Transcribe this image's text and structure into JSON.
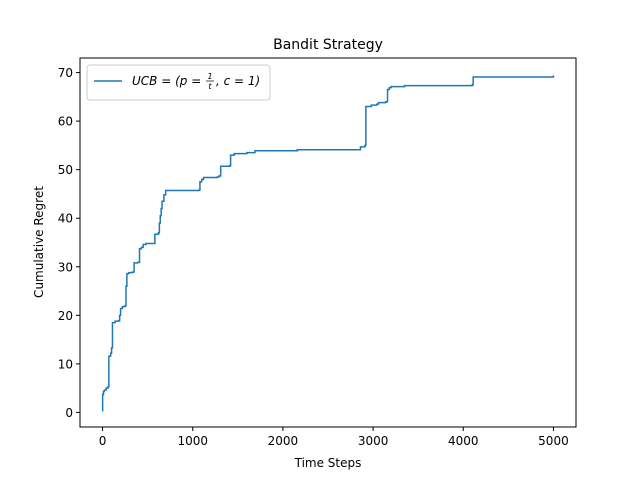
{
  "chart_data": {
    "type": "line",
    "title": "Bandit Strategy",
    "xlabel": "Time Steps",
    "ylabel": "Cumulative Regret",
    "xlim": [
      -250,
      5250
    ],
    "ylim": [
      -3,
      73
    ],
    "xticks": [
      0,
      1000,
      2000,
      3000,
      4000,
      5000
    ],
    "yticks": [
      0,
      10,
      20,
      30,
      40,
      50,
      60,
      70
    ],
    "grid": false,
    "legend_position": "top-left",
    "series": [
      {
        "name": "UCB = (p = 1/t, c = 1)",
        "color": "#1f77b4",
        "step": true,
        "points": [
          [
            0,
            0.3
          ],
          [
            1,
            3.7
          ],
          [
            10,
            4.3
          ],
          [
            20,
            4.6
          ],
          [
            40,
            5.0
          ],
          [
            60,
            5.3
          ],
          [
            70,
            11.6
          ],
          [
            90,
            12.2
          ],
          [
            100,
            13.3
          ],
          [
            110,
            18.5
          ],
          [
            140,
            18.8
          ],
          [
            180,
            18.9
          ],
          [
            190,
            20.0
          ],
          [
            200,
            21.4
          ],
          [
            220,
            21.8
          ],
          [
            250,
            22.0
          ],
          [
            260,
            26.0
          ],
          [
            270,
            28.6
          ],
          [
            290,
            28.8
          ],
          [
            330,
            28.9
          ],
          [
            350,
            30.8
          ],
          [
            390,
            30.9
          ],
          [
            410,
            33.7
          ],
          [
            430,
            34.0
          ],
          [
            450,
            34.6
          ],
          [
            480,
            34.8
          ],
          [
            580,
            36.7
          ],
          [
            620,
            37.0
          ],
          [
            630,
            39.0
          ],
          [
            640,
            40.5
          ],
          [
            650,
            42.0
          ],
          [
            660,
            43.5
          ],
          [
            680,
            44.8
          ],
          [
            700,
            45.7
          ],
          [
            1070,
            45.8
          ],
          [
            1080,
            47.5
          ],
          [
            1100,
            48.0
          ],
          [
            1120,
            48.4
          ],
          [
            1270,
            48.5
          ],
          [
            1290,
            48.7
          ],
          [
            1310,
            50.7
          ],
          [
            1410,
            50.8
          ],
          [
            1420,
            53.0
          ],
          [
            1460,
            53.3
          ],
          [
            1600,
            53.5
          ],
          [
            1690,
            53.9
          ],
          [
            2160,
            54.1
          ],
          [
            2860,
            54.7
          ],
          [
            2910,
            55.0
          ],
          [
            2920,
            63.0
          ],
          [
            2980,
            63.3
          ],
          [
            3040,
            63.5
          ],
          [
            3060,
            63.8
          ],
          [
            3140,
            64.0
          ],
          [
            3160,
            66.5
          ],
          [
            3180,
            66.9
          ],
          [
            3200,
            67.1
          ],
          [
            3350,
            67.3
          ],
          [
            4100,
            67.5
          ],
          [
            4110,
            69.1
          ],
          [
            4990,
            69.1
          ],
          [
            5000,
            69.4
          ]
        ]
      }
    ]
  },
  "legend": {
    "prefix": "UCB = (p = ",
    "frac_num": "1",
    "frac_den": "t",
    "suffix": ", c = 1)"
  }
}
